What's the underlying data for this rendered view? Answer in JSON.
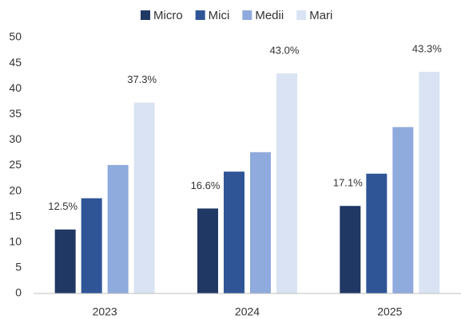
{
  "chart_data": {
    "type": "bar",
    "categories": [
      "2023",
      "2024",
      "2025"
    ],
    "series": [
      {
        "name": "Micro",
        "color": "#203864",
        "values": [
          12.5,
          16.6,
          17.1
        ],
        "value_labels": [
          "12.5%",
          "16.6%",
          "17.1%"
        ]
      },
      {
        "name": "Mici",
        "color": "#2f5597",
        "values": [
          18.6,
          23.8,
          23.4
        ]
      },
      {
        "name": "Medii",
        "color": "#8faadc",
        "values": [
          25.1,
          27.6,
          32.5
        ]
      },
      {
        "name": "Mari",
        "color": "#dae3f3",
        "values": [
          37.3,
          43.0,
          43.3
        ],
        "value_labels": [
          "37.3%",
          "43.0%",
          "43.3%"
        ]
      }
    ],
    "ylim": [
      0,
      50
    ],
    "yticks": [
      0,
      5,
      10,
      15,
      20,
      25,
      30,
      35,
      40,
      45,
      50
    ],
    "grid": false,
    "legend": "top"
  }
}
